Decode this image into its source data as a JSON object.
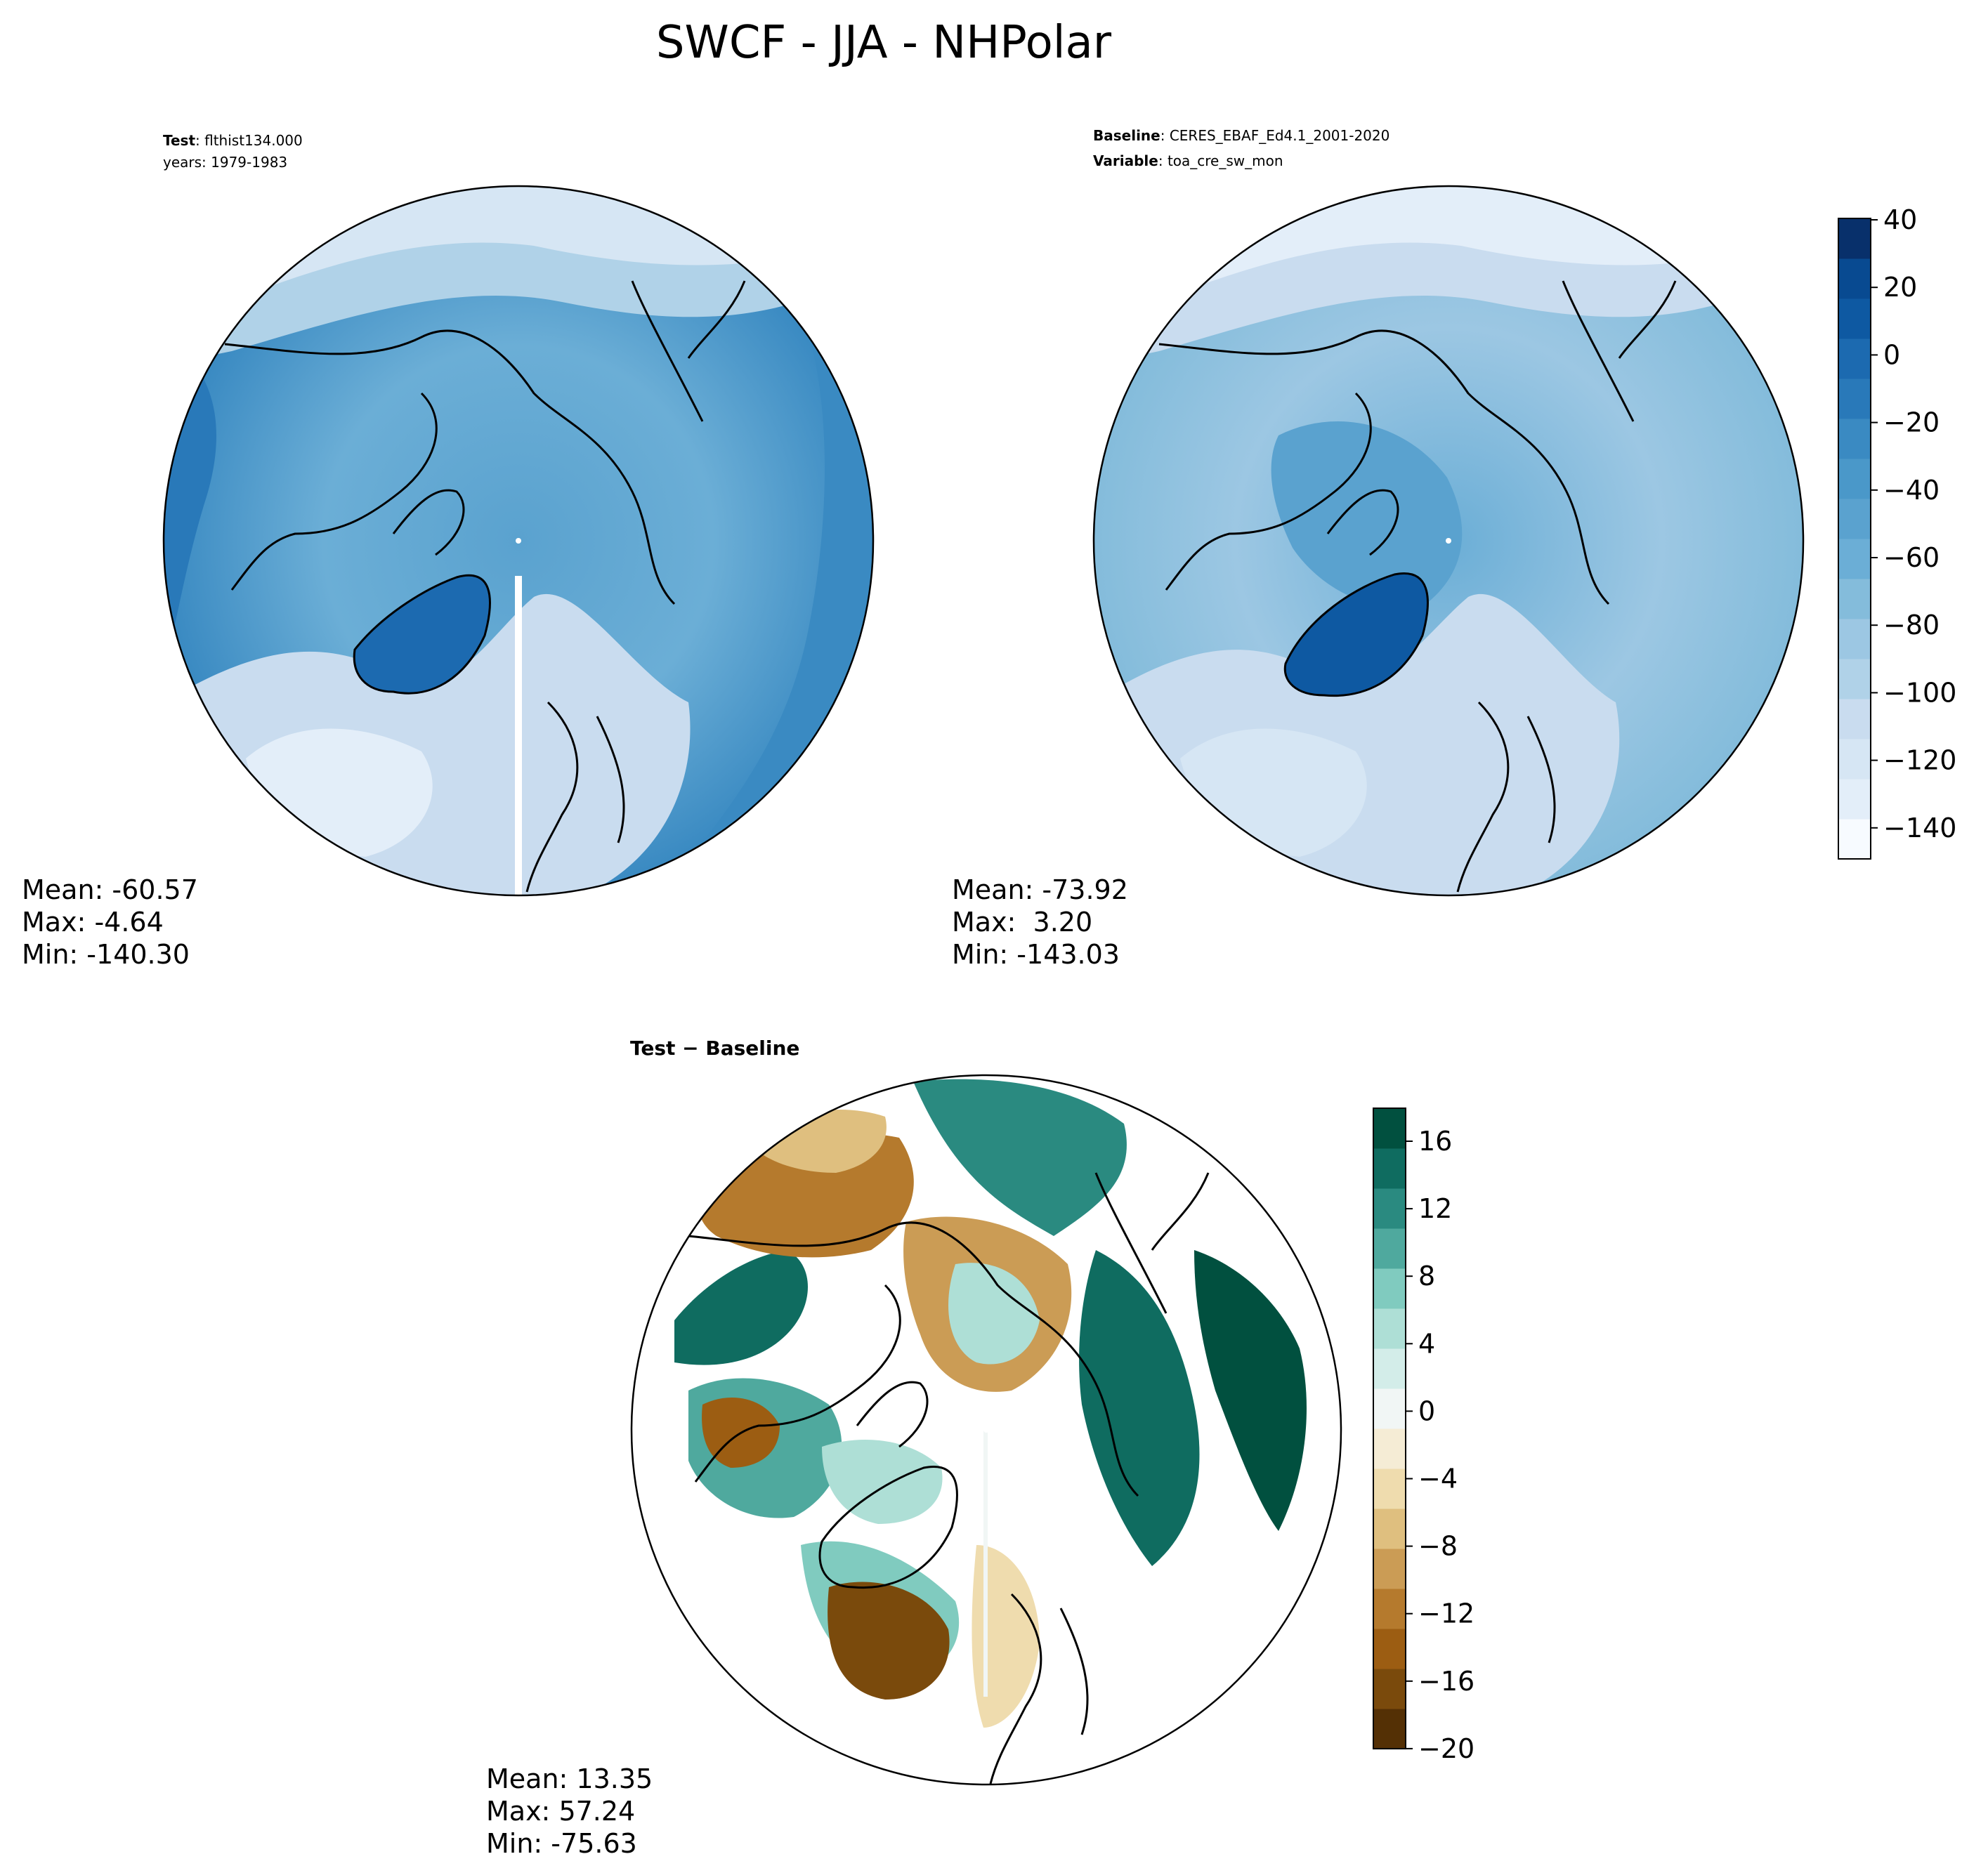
{
  "figure": {
    "title": "SWCF - JJA - NHPolar"
  },
  "panels": {
    "test": {
      "header": [
        {
          "bold": "Test",
          "rest": ": flthist134.000"
        },
        {
          "bold": "",
          "rest": "years: 1979-1983"
        }
      ],
      "stats": [
        "Mean: -60.57",
        "Max: -4.64",
        "Min: -140.30"
      ]
    },
    "baseline": {
      "header": [
        {
          "bold": "Baseline",
          "rest": ": CERES_EBAF_Ed4.1_2001-2020"
        },
        {
          "bold": "Variable",
          "rest": ": toa_cre_sw_mon"
        }
      ],
      "stats": [
        "Mean: -73.92",
        "Max:  3.20",
        "Min: -143.03"
      ]
    },
    "diff": {
      "header": [
        {
          "bold": "Test − Baseline",
          "rest": ""
        }
      ],
      "stats": [
        "Mean: 13.35",
        "Max: 57.24",
        "Min: -75.63"
      ]
    }
  },
  "colorbars": {
    "main": {
      "ticks": [
        "40",
        "20",
        "0",
        "−20",
        "−40",
        "−60",
        "−80",
        "−100",
        "−120",
        "−140"
      ],
      "colors": [
        "#f7fbff",
        "#e3eef9",
        "#d6e6f4",
        "#c9dcef",
        "#b0d2e8",
        "#9cc7e3",
        "#84bcdb",
        "#6baed6",
        "#5aa2cf",
        "#4a98c9",
        "#3a8ac2",
        "#2979b9",
        "#1c6ab0",
        "#0e59a2",
        "#084a91",
        "#08306b"
      ]
    },
    "diff": {
      "ticks": [
        "16",
        "12",
        "8",
        "4",
        "0",
        "−4",
        "−8",
        "−12",
        "−16",
        "−20"
      ],
      "colors": [
        "#543005",
        "#7a4a0c",
        "#9c5d12",
        "#b57a2d",
        "#cb9c55",
        "#dfbf7f",
        "#efdcae",
        "#f5ecd5",
        "#f1f6f5",
        "#d3ede9",
        "#aedfd6",
        "#80cbbf",
        "#4fa99e",
        "#2a8a80",
        "#0f6c60",
        "#01503f"
      ]
    }
  }
}
